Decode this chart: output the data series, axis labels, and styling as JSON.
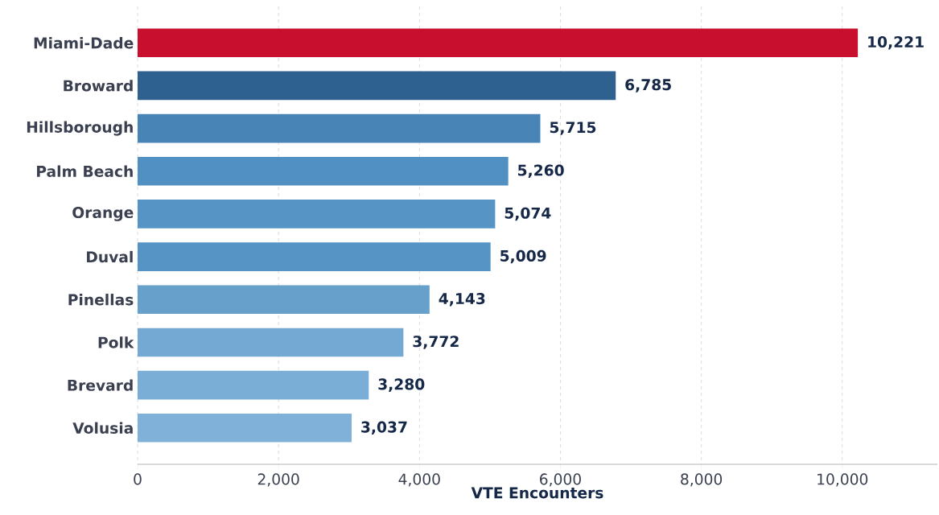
{
  "chart_data": {
    "type": "bar",
    "orientation": "horizontal",
    "xlabel": "VTE Encounters",
    "categories": [
      "Miami-Dade",
      "Broward",
      "Hillsborough",
      "Palm Beach",
      "Orange",
      "Duval",
      "Pinellas",
      "Polk",
      "Brevard",
      "Volusia"
    ],
    "values": [
      10221,
      6785,
      5715,
      5260,
      5074,
      5009,
      4143,
      3772,
      3280,
      3037
    ],
    "value_labels": [
      "10,221",
      "6,785",
      "5,715",
      "5,260",
      "5,074",
      "5,009",
      "4,143",
      "3,772",
      "3,280",
      "3,037"
    ],
    "colors": [
      "#c8102e",
      "#2e6090",
      "#4884b6",
      "#5190c2",
      "#5594c4",
      "#5594c4",
      "#68a0cc",
      "#73a9d3",
      "#7aaed6",
      "#7fb1d9"
    ],
    "xlim": [
      0,
      11350
    ],
    "xticks": [
      0,
      {
        "value": 2000,
        "label": "2,000"
      },
      {
        "value": 4000,
        "label": "4,000"
      },
      {
        "value": 6000,
        "label": "6,000"
      },
      {
        "value": 8000,
        "label": "8,000"
      },
      {
        "value": 10000,
        "label": "10,000"
      }
    ],
    "grid": "x"
  }
}
